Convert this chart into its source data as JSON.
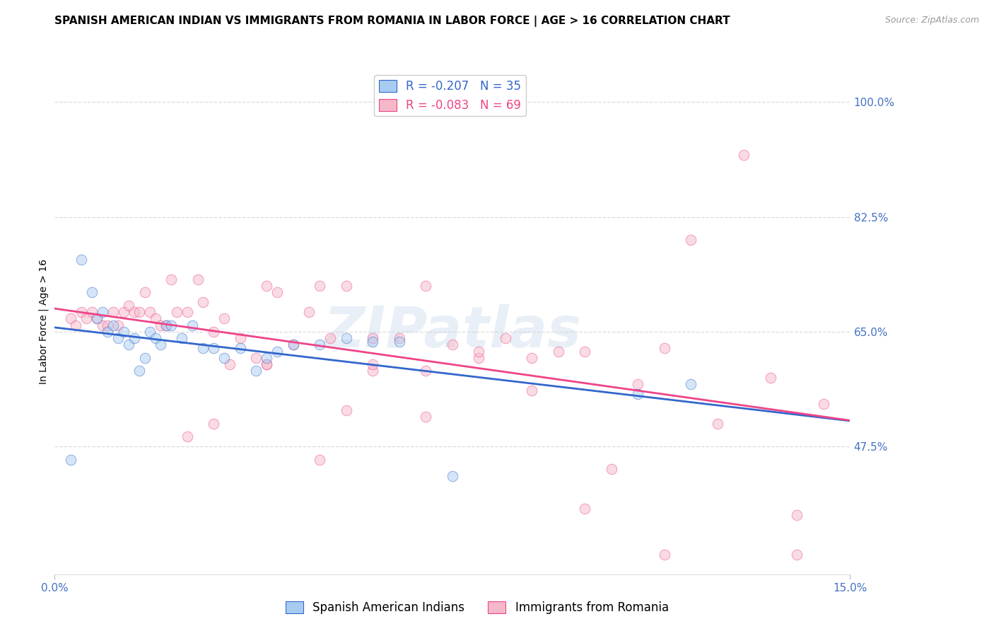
{
  "title": "SPANISH AMERICAN INDIAN VS IMMIGRANTS FROM ROMANIA IN LABOR FORCE | AGE > 16 CORRELATION CHART",
  "source": "Source: ZipAtlas.com",
  "ylabel": "In Labor Force | Age > 16",
  "xlim": [
    0.0,
    0.15
  ],
  "ylim": [
    0.28,
    1.05
  ],
  "ytick_labels_right": [
    "100.0%",
    "82.5%",
    "65.0%",
    "47.5%"
  ],
  "ytick_positions_right": [
    1.0,
    0.825,
    0.65,
    0.475
  ],
  "xtick_labels": [
    "0.0%",
    "15.0%"
  ],
  "xtick_positions": [
    0.0,
    0.15
  ],
  "grid_yticks": [
    1.0,
    0.825,
    0.65,
    0.475
  ],
  "series1_color": "#A8CCF0",
  "series2_color": "#F5B8C8",
  "line1_color": "#3366CC",
  "line2_color": "#EE4488",
  "series1_label": "Spanish American Indians",
  "series2_label": "Immigrants from Romania",
  "r1": -0.207,
  "n1": 35,
  "r2": -0.083,
  "n2": 69,
  "watermark": "ZIPatlas",
  "series1_x": [
    0.003,
    0.005,
    0.007,
    0.008,
    0.009,
    0.01,
    0.011,
    0.012,
    0.013,
    0.014,
    0.015,
    0.016,
    0.017,
    0.018,
    0.019,
    0.02,
    0.021,
    0.022,
    0.024,
    0.026,
    0.028,
    0.03,
    0.032,
    0.035,
    0.038,
    0.04,
    0.042,
    0.045,
    0.05,
    0.055,
    0.06,
    0.065,
    0.075,
    0.11,
    0.12
  ],
  "series1_y": [
    0.455,
    0.76,
    0.71,
    0.67,
    0.68,
    0.65,
    0.66,
    0.64,
    0.65,
    0.63,
    0.64,
    0.59,
    0.61,
    0.65,
    0.64,
    0.63,
    0.66,
    0.66,
    0.64,
    0.66,
    0.625,
    0.625,
    0.61,
    0.625,
    0.59,
    0.61,
    0.62,
    0.63,
    0.63,
    0.64,
    0.635,
    0.635,
    0.43,
    0.555,
    0.57
  ],
  "series2_x": [
    0.003,
    0.004,
    0.005,
    0.006,
    0.007,
    0.008,
    0.009,
    0.01,
    0.011,
    0.012,
    0.013,
    0.014,
    0.015,
    0.016,
    0.017,
    0.018,
    0.019,
    0.02,
    0.021,
    0.022,
    0.023,
    0.025,
    0.027,
    0.028,
    0.03,
    0.032,
    0.033,
    0.035,
    0.038,
    0.04,
    0.042,
    0.045,
    0.048,
    0.05,
    0.052,
    0.055,
    0.06,
    0.065,
    0.07,
    0.075,
    0.08,
    0.085,
    0.09,
    0.095,
    0.1,
    0.105,
    0.11,
    0.115,
    0.12,
    0.125,
    0.13,
    0.135,
    0.14,
    0.145,
    0.04,
    0.05,
    0.06,
    0.07,
    0.025,
    0.03,
    0.04,
    0.055,
    0.06,
    0.07,
    0.08,
    0.09,
    0.1,
    0.115,
    0.14
  ],
  "series2_y": [
    0.67,
    0.66,
    0.68,
    0.67,
    0.68,
    0.67,
    0.66,
    0.66,
    0.68,
    0.66,
    0.68,
    0.69,
    0.68,
    0.68,
    0.71,
    0.68,
    0.67,
    0.66,
    0.66,
    0.73,
    0.68,
    0.68,
    0.73,
    0.695,
    0.65,
    0.67,
    0.6,
    0.64,
    0.61,
    0.72,
    0.71,
    0.63,
    0.68,
    0.72,
    0.64,
    0.72,
    0.64,
    0.64,
    0.72,
    0.63,
    0.61,
    0.64,
    0.56,
    0.62,
    0.62,
    0.44,
    0.57,
    0.625,
    0.79,
    0.51,
    0.92,
    0.58,
    0.37,
    0.54,
    0.6,
    0.455,
    0.59,
    0.52,
    0.49,
    0.51,
    0.6,
    0.53,
    0.6,
    0.59,
    0.62,
    0.61,
    0.38,
    0.31,
    0.31
  ],
  "title_fontsize": 11,
  "axis_label_fontsize": 10,
  "tick_fontsize": 11,
  "marker_size": 110,
  "marker_alpha": 0.5,
  "line_width": 2.0,
  "background_color": "#FFFFFF",
  "tick_color": "#4472C4",
  "grid_color": "#CCCCCC",
  "grid_style": "--",
  "grid_alpha": 0.7
}
